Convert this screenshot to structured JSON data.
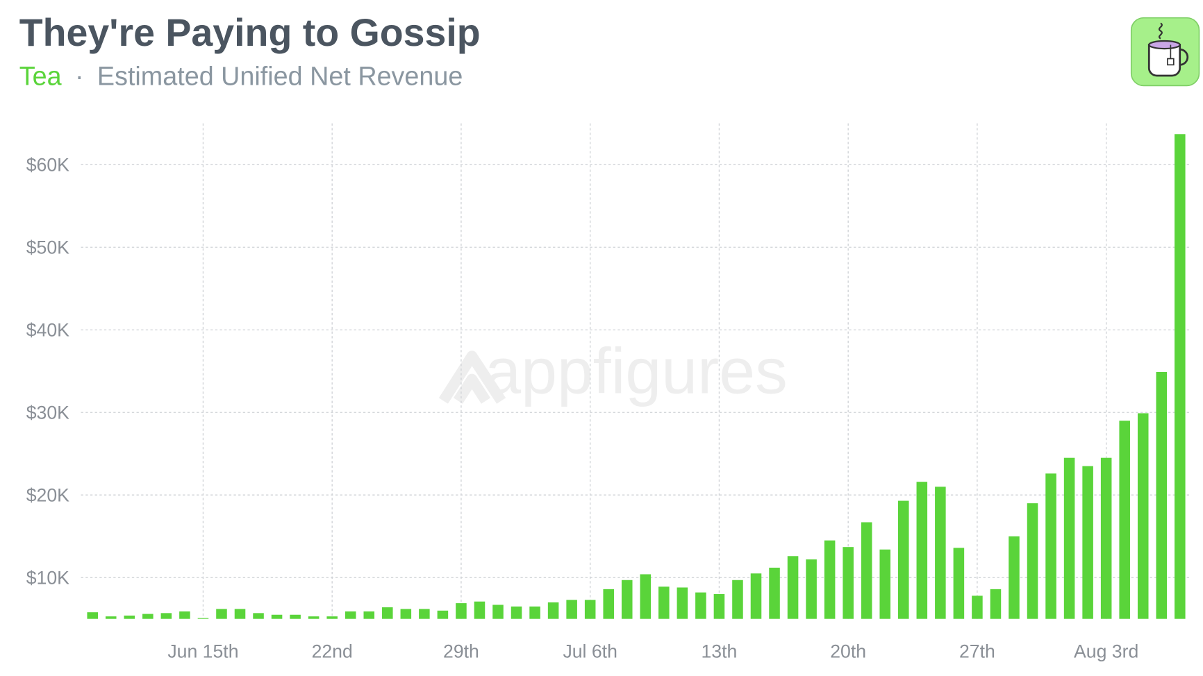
{
  "chart_data": {
    "type": "bar",
    "title": "They're Paying to Gossip",
    "app_name": "Tea",
    "subtitle_separator": "·",
    "subtitle": "Estimated Unified Net Revenue",
    "watermark": "appfigures",
    "categories": [
      null,
      null,
      null,
      null,
      null,
      null,
      "Jun 15th",
      null,
      null,
      null,
      null,
      null,
      null,
      "22nd",
      null,
      null,
      null,
      null,
      null,
      null,
      "29th",
      null,
      null,
      null,
      null,
      null,
      null,
      "Jul 6th",
      null,
      null,
      null,
      null,
      null,
      null,
      "13th",
      null,
      null,
      null,
      null,
      null,
      null,
      "20th",
      null,
      null,
      null,
      null,
      null,
      null,
      "27th",
      null,
      null,
      null,
      null,
      null,
      null,
      "Aug 3rd",
      null,
      null,
      null,
      null
    ],
    "values": [
      5800,
      5300,
      5400,
      5600,
      5700,
      5900,
      5100,
      6200,
      6200,
      5700,
      5500,
      5500,
      5300,
      5300,
      5900,
      5900,
      6400,
      6200,
      6200,
      6000,
      6900,
      7100,
      6700,
      6500,
      6500,
      7000,
      7300,
      7300,
      8600,
      9700,
      10400,
      8900,
      8800,
      8200,
      8000,
      9700,
      10500,
      11200,
      12600,
      12200,
      14500,
      13700,
      16700,
      13400,
      19300,
      21600,
      21000,
      13600,
      7800,
      8600,
      15000,
      19000,
      22600,
      24500,
      23500,
      24500,
      29000,
      29900,
      34900,
      63700
    ],
    "color": "#5ad43a",
    "ylim": [
      5000,
      65000
    ],
    "yticks": [
      {
        "value": 10000,
        "label": "$10K"
      },
      {
        "value": 20000,
        "label": "$20K"
      },
      {
        "value": 30000,
        "label": "$30K"
      },
      {
        "value": 40000,
        "label": "$40K"
      },
      {
        "value": 50000,
        "label": "$50K"
      },
      {
        "value": 60000,
        "label": "$60K"
      }
    ],
    "grid": true
  }
}
